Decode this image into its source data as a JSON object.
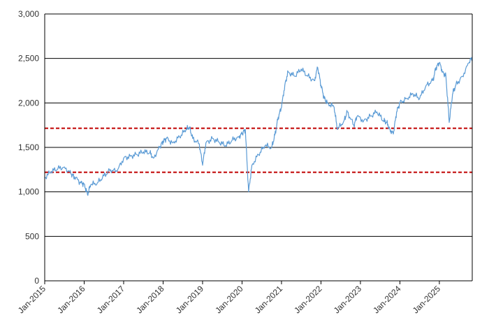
{
  "chart_data": {
    "type": "line",
    "title": "",
    "xlabel": "",
    "ylabel": "",
    "ylim": [
      0,
      3000
    ],
    "xlim": [
      "2015-01",
      "2025-11"
    ],
    "grid": "horizontal",
    "legend": "none",
    "y_ticks": [
      0,
      500,
      1000,
      1500,
      2000,
      2500,
      3000
    ],
    "y_tick_labels": [
      "0",
      "500",
      "1,000",
      "1,500",
      "2,000",
      "2,500",
      "3,000"
    ],
    "x_ticks": [
      "2015-01",
      "2016-01",
      "2017-01",
      "2018-01",
      "2019-01",
      "2020-01",
      "2021-01",
      "2022-01",
      "2023-01",
      "2024-01",
      "2025-01"
    ],
    "x_tick_labels": [
      "Jan-2015",
      "Jan-2016",
      "Jan-2017",
      "Jan-2018",
      "Jan-2019",
      "Jan-2020",
      "Jan-2021",
      "Jan-2022",
      "Jan-2023",
      "Jan-2024",
      "Jan-2025"
    ],
    "reference_lines": [
      {
        "y": 1715,
        "color": "#c00000",
        "style": "dashed"
      },
      {
        "y": 1220,
        "color": "#c00000",
        "style": "dashed"
      }
    ],
    "series": [
      {
        "color": "#5b9bd5",
        "x": [
          "2015-01",
          "2015-03",
          "2015-05",
          "2015-07",
          "2015-09",
          "2015-10",
          "2015-12",
          "2016-01",
          "2016-02",
          "2016-03",
          "2016-05",
          "2016-07",
          "2016-09",
          "2016-11",
          "2017-01",
          "2017-03",
          "2017-05",
          "2017-07",
          "2017-09",
          "2017-10",
          "2017-12",
          "2018-01",
          "2018-02",
          "2018-04",
          "2018-06",
          "2018-08",
          "2018-09",
          "2018-10",
          "2018-12",
          "2019-01",
          "2019-02",
          "2019-04",
          "2019-06",
          "2019-08",
          "2019-10",
          "2019-12",
          "2020-01",
          "2020-02",
          "2020-03",
          "2020-04",
          "2020-06",
          "2020-08",
          "2020-10",
          "2020-11",
          "2020-12",
          "2021-01",
          "2021-02",
          "2021-03",
          "2021-05",
          "2021-07",
          "2021-09",
          "2021-11",
          "2021-12",
          "2022-01",
          "2022-02",
          "2022-03",
          "2022-05",
          "2022-06",
          "2022-08",
          "2022-09",
          "2022-11",
          "2022-12",
          "2023-02",
          "2023-04",
          "2023-06",
          "2023-08",
          "2023-09",
          "2023-10",
          "2023-11",
          "2023-12",
          "2024-01",
          "2024-03",
          "2024-05",
          "2024-07",
          "2024-09",
          "2024-11",
          "2024-12",
          "2025-01",
          "2025-02",
          "2025-03",
          "2025-04",
          "2025-05",
          "2025-06",
          "2025-08",
          "2025-10",
          "2025-11"
        ],
        "y": [
          1160,
          1230,
          1260,
          1280,
          1200,
          1170,
          1100,
          1090,
          970,
          1080,
          1100,
          1180,
          1250,
          1230,
          1380,
          1400,
          1420,
          1450,
          1440,
          1380,
          1500,
          1570,
          1600,
          1550,
          1620,
          1700,
          1730,
          1600,
          1540,
          1300,
          1550,
          1600,
          1560,
          1520,
          1580,
          1620,
          1650,
          1700,
          1000,
          1300,
          1420,
          1520,
          1500,
          1640,
          1840,
          1950,
          2200,
          2350,
          2300,
          2380,
          2300,
          2250,
          2400,
          2200,
          2050,
          2000,
          1950,
          1700,
          1800,
          1900,
          1750,
          1850,
          1800,
          1850,
          1900,
          1800,
          1780,
          1700,
          1650,
          1900,
          2000,
          2050,
          2100,
          2050,
          2200,
          2250,
          2400,
          2450,
          2350,
          2300,
          1780,
          2100,
          2200,
          2300,
          2450,
          2520
        ]
      }
    ]
  }
}
